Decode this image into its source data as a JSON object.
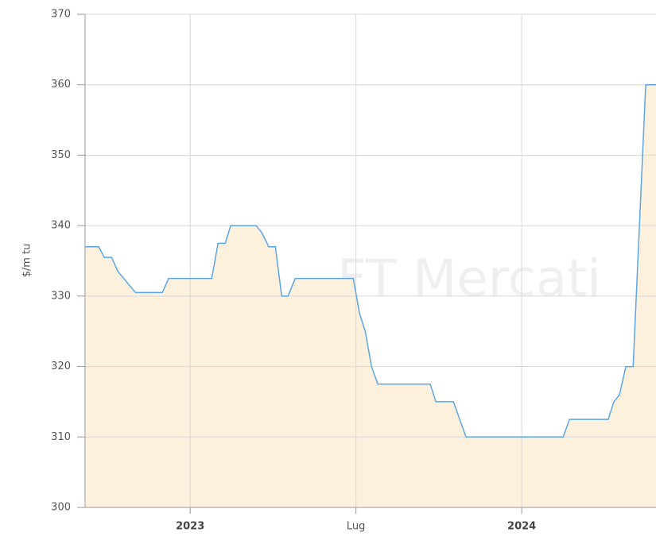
{
  "chart_data": {
    "type": "area",
    "y_label": "$/m tu",
    "watermark": "FT Mercati",
    "color": "#5aa6e6",
    "fill": "#fdf0dc",
    "grid": true,
    "xlim": [
      2022.683,
      2024.405
    ],
    "xticks": [
      {
        "value": 2023,
        "label": "2023"
      },
      {
        "value": 2023.5,
        "label": "Lug"
      },
      {
        "value": 2024,
        "label": "2024"
      }
    ],
    "ylim": [
      300,
      370
    ],
    "yticks": [
      300,
      310,
      320,
      330,
      340,
      350,
      360,
      370
    ],
    "x": [
      2022.683,
      2022.724,
      2022.741,
      2022.763,
      2022.782,
      2022.835,
      2022.916,
      2022.935,
      2023.065,
      2023.084,
      2023.106,
      2023.122,
      2023.199,
      2023.216,
      2023.237,
      2023.257,
      2023.276,
      2023.295,
      2023.317,
      2023.492,
      2023.511,
      2023.528,
      2023.547,
      2023.566,
      2023.724,
      2023.741,
      2023.794,
      2023.832,
      2024.125,
      2024.144,
      2024.261,
      2024.278,
      2024.295,
      2024.314,
      2024.336,
      2024.374,
      2024.405
    ],
    "values": [
      337,
      337,
      335.5,
      335.5,
      333.5,
      330.5,
      330.5,
      332.5,
      332.5,
      337.5,
      337.5,
      340,
      340,
      339,
      337,
      337,
      330,
      330,
      332.5,
      332.5,
      327.5,
      325,
      320,
      317.5,
      317.5,
      315,
      315,
      310,
      310,
      312.5,
      312.5,
      315,
      316,
      320,
      320,
      360,
      360
    ]
  }
}
